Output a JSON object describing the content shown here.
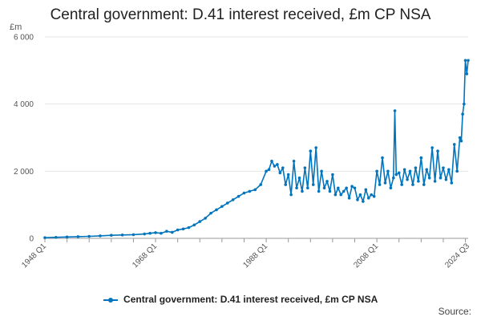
{
  "chart_data": {
    "type": "line",
    "title": "Central government: D.41 interest received, £m CP NSA",
    "ylabel": "£m",
    "xlabel": "",
    "ylim": [
      0,
      6000
    ],
    "yticks": [
      0,
      2000,
      4000,
      6000
    ],
    "ytick_labels": [
      "0",
      "2 000",
      "4 000",
      "6 000"
    ],
    "xlim": [
      1948.0,
      2024.5
    ],
    "xtick_labels": [
      "1948 Q1",
      "1968 Q1",
      "1988 Q1",
      "2008 Q1",
      "2024 Q3"
    ],
    "xtick_values": [
      1948.0,
      1968.0,
      1988.0,
      2008.0,
      2024.5
    ],
    "grid": "horizontal",
    "legend_position": "bottom",
    "colors": {
      "series": "#0075be"
    },
    "series": [
      {
        "name": "Central government: D.41 interest received, £m CP NSA",
        "x": [
          1948.0,
          1950.0,
          1952.0,
          1954.0,
          1956.0,
          1958.0,
          1960.0,
          1962.0,
          1964.0,
          1966.0,
          1967.0,
          1968.0,
          1969.0,
          1970.0,
          1971.0,
          1972.0,
          1973.0,
          1974.0,
          1975.0,
          1976.0,
          1977.0,
          1978.0,
          1979.0,
          1980.0,
          1981.0,
          1982.0,
          1983.0,
          1984.0,
          1985.0,
          1986.0,
          1987.0,
          1988.0,
          1988.5,
          1989.0,
          1989.5,
          1990.0,
          1990.5,
          1991.0,
          1991.5,
          1992.0,
          1992.5,
          1993.0,
          1993.5,
          1994.0,
          1994.5,
          1995.0,
          1995.5,
          1996.0,
          1996.5,
          1997.0,
          1997.5,
          1998.0,
          1998.5,
          1999.0,
          1999.5,
          2000.0,
          2000.5,
          2001.0,
          2001.5,
          2002.0,
          2002.5,
          2003.0,
          2003.5,
          2004.0,
          2004.5,
          2005.0,
          2005.5,
          2006.0,
          2006.5,
          2007.0,
          2007.5,
          2008.0,
          2008.5,
          2009.0,
          2009.5,
          2010.0,
          2010.5,
          2011.0,
          2011.25,
          2011.5,
          2012.0,
          2012.5,
          2013.0,
          2013.5,
          2014.0,
          2014.5,
          2015.0,
          2015.5,
          2016.0,
          2016.5,
          2017.0,
          2017.5,
          2018.0,
          2018.5,
          2019.0,
          2019.5,
          2020.0,
          2020.5,
          2021.0,
          2021.5,
          2022.0,
          2022.5,
          2023.0,
          2023.25,
          2023.5,
          2023.75,
          2024.0,
          2024.25,
          2024.5
        ],
        "values": [
          20,
          30,
          40,
          50,
          60,
          75,
          90,
          100,
          110,
          130,
          150,
          170,
          150,
          210,
          180,
          250,
          280,
          320,
          400,
          500,
          600,
          750,
          850,
          950,
          1050,
          1150,
          1250,
          1350,
          1400,
          1450,
          1600,
          2000,
          2050,
          2300,
          2150,
          2200,
          1950,
          2100,
          1600,
          1900,
          1300,
          2300,
          1500,
          1800,
          1400,
          2100,
          1500,
          2600,
          1600,
          2700,
          1400,
          2000,
          1500,
          1700,
          1400,
          1900,
          1300,
          1500,
          1300,
          1400,
          1500,
          1200,
          1550,
          1500,
          1150,
          1300,
          1100,
          1450,
          1200,
          1300,
          1250,
          2000,
          1600,
          2400,
          1650,
          2000,
          1500,
          1800,
          3800,
          1900,
          1950,
          1600,
          2050,
          1750,
          2000,
          1600,
          2100,
          1700,
          2400,
          1600,
          2050,
          1800,
          2700,
          1700,
          2600,
          1800,
          2100,
          1750,
          2050,
          1650,
          2800,
          2000,
          3000,
          2900,
          3700,
          4000,
          5300,
          4900,
          5300
        ]
      }
    ]
  },
  "legend": {
    "label": "Central government: D.41 interest received, £m CP NSA"
  },
  "source": {
    "label": "Source:"
  }
}
